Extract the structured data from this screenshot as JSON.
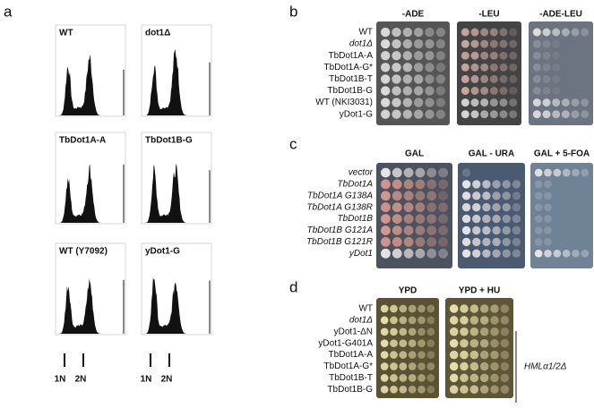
{
  "panel_a": {
    "label": "a",
    "histograms": [
      {
        "title": "WT"
      },
      {
        "title": "dot1Δ"
      },
      {
        "title": "TbDot1A-A"
      },
      {
        "title": "TbDot1B-G"
      },
      {
        "title": "WT (Y7092)"
      },
      {
        "title": "yDot1-G"
      }
    ],
    "axis_labels": [
      "1N",
      "2N"
    ]
  },
  "panel_b": {
    "label": "b",
    "columns": [
      "-ADE",
      "-LEU",
      "-ADE-LEU"
    ],
    "strains": [
      "WT",
      "dot1Δ",
      "TbDot1A-A",
      "TbDot1A-G*",
      "TbDot1B-T",
      "TbDot1B-G",
      "WT (NKI3031)",
      "yDot1-G"
    ]
  },
  "panel_c": {
    "label": "c",
    "columns": [
      "GAL",
      "GAL - URA",
      "GAL + 5-FOA"
    ],
    "strains": [
      "vector",
      "TbDot1A",
      "TbDot1A G138A",
      "TbDot1A G138R",
      "TbDot1B",
      "TbDot1B G121A",
      "TbDot1B G121R",
      "yDot1"
    ]
  },
  "panel_d": {
    "label": "d",
    "columns": [
      "YPD",
      "YPD + HU"
    ],
    "strains": [
      "WT",
      "dot1Δ",
      "yDot1-ΔN",
      "yDot1-G401A",
      "TbDot1A-A",
      "TbDot1A-G*",
      "TbDot1B-T",
      "TbDot1B-G"
    ],
    "bracket_label": "HMLα1/2Δ"
  }
}
